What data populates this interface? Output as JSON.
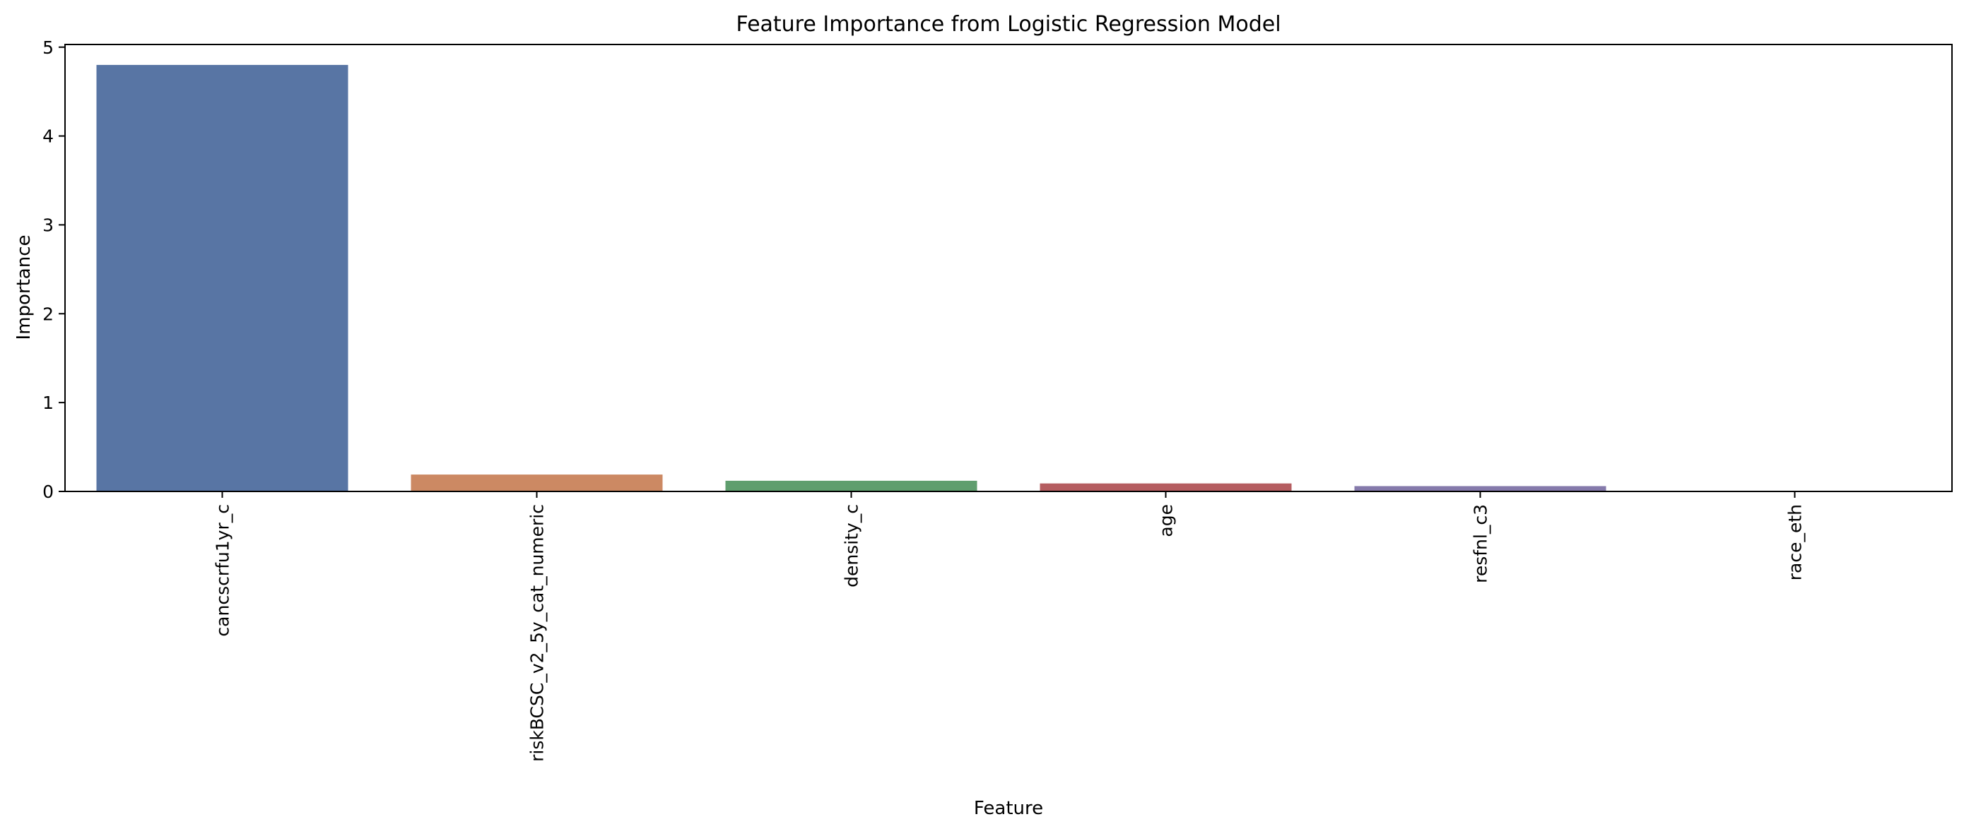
{
  "chart_data": {
    "type": "bar",
    "title": "Feature Importance from Logistic Regression Model",
    "xlabel": "Feature",
    "ylabel": "Importance",
    "categories": [
      "cancscrfu1yr_c",
      "riskBCSC_v2_5y_cat_numeric",
      "density_c",
      "age",
      "resfnl_c3",
      "race_eth"
    ],
    "values": [
      4.8,
      0.19,
      0.12,
      0.09,
      0.06,
      0.0
    ],
    "colors": [
      "#5875a4",
      "#cc8963",
      "#5f9e6e",
      "#b55d60",
      "#857aab",
      "#8d7866"
    ],
    "ylim": [
      0,
      5.03
    ],
    "yticks": [
      0,
      1,
      2,
      3,
      4,
      5
    ],
    "grid": false,
    "legend": "none"
  }
}
